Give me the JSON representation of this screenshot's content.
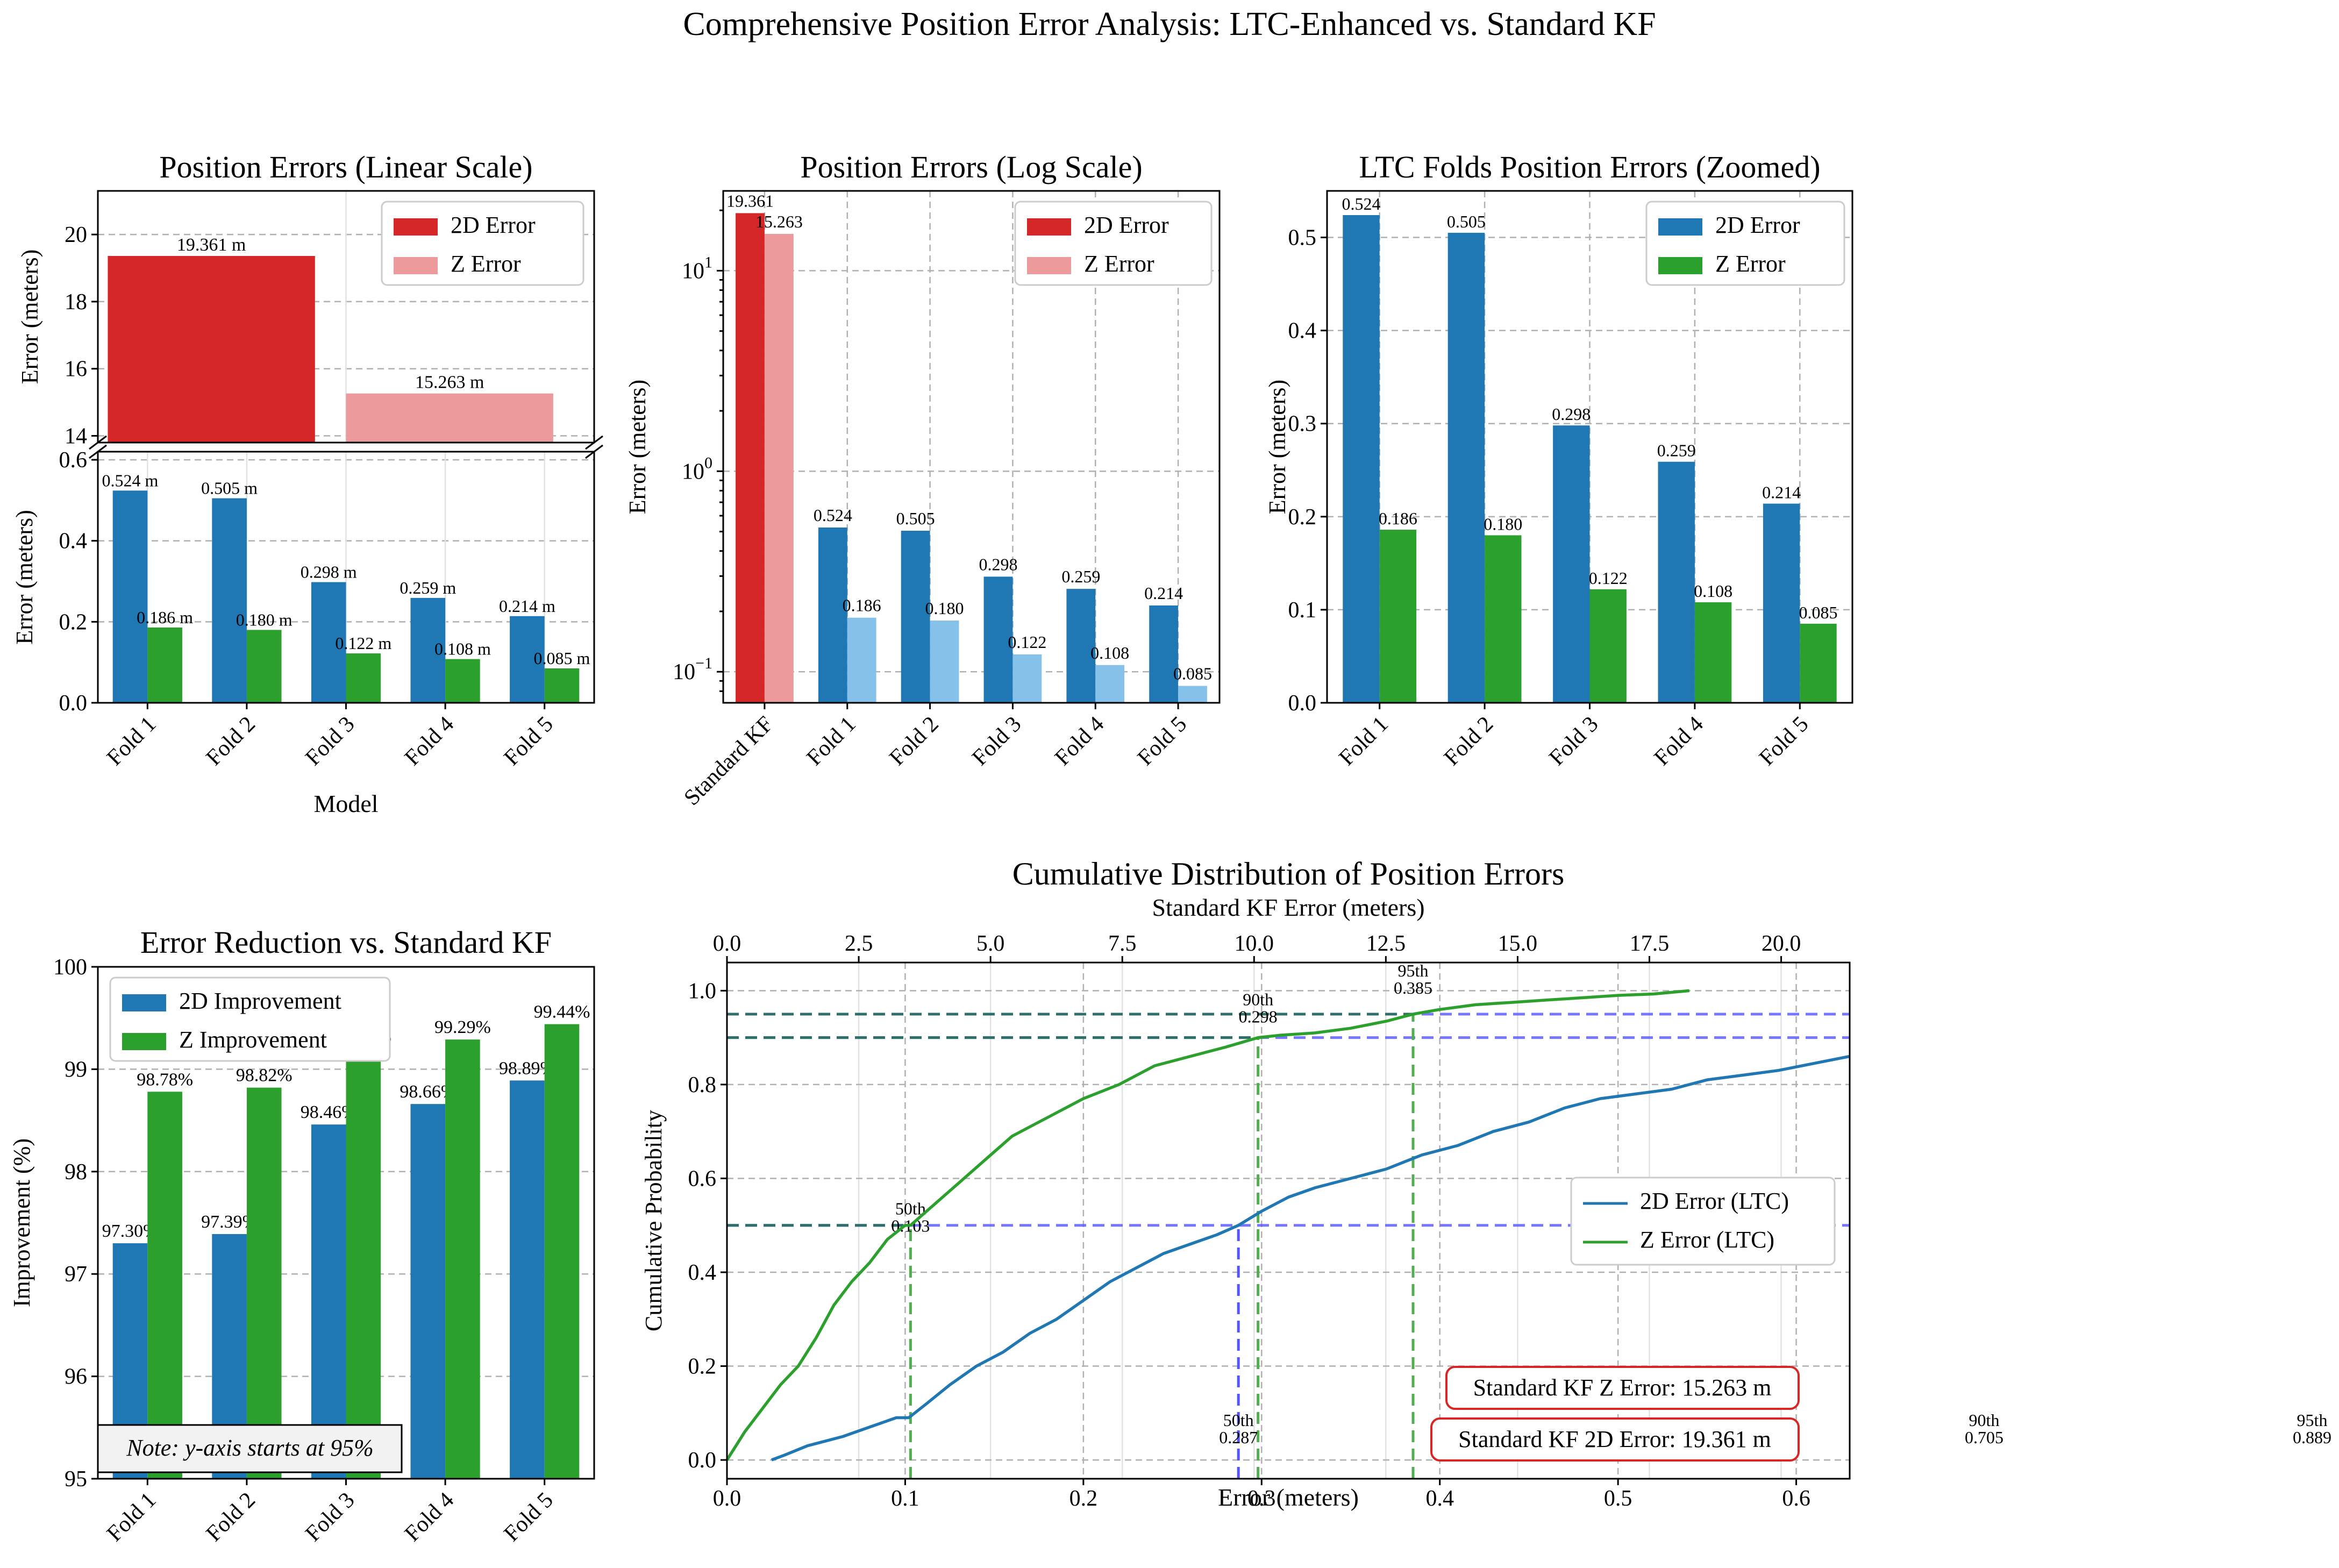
{
  "figure": {
    "suptitle": "Comprehensive Position Error Analysis: LTC-Enhanced vs. Standard KF"
  },
  "colors": {
    "kf_2d": "#d62728",
    "kf_z": "#ec9a9b",
    "ltc_2d": "#1f77b4",
    "ltc_z": "#2ca02c",
    "ltc_z_light": "#85c1e9",
    "cdf_ref_blue": "#5555ff",
    "cdf_ref_green": "#4fae4f",
    "cdf_ref_dark": "#2f6f6a",
    "annotation_red": "#d62728",
    "percentile_blue": "#0000cc",
    "percentile_green": "#1f9a1f"
  },
  "chart_data": [
    {
      "id": "linear",
      "type": "bar",
      "title": "Position Errors (Linear Scale)",
      "xlabel": "Model",
      "ylabel": "Error (meters)",
      "broken_axis": true,
      "top_panel": {
        "ylim": [
          13.8,
          21.3
        ],
        "yticks": [
          14,
          16,
          18,
          20
        ],
        "categories": [
          "Standard KF"
        ],
        "series": [
          {
            "name": "2D Error",
            "values": [
              19.361
            ],
            "labels": [
              "19.361 m"
            ]
          },
          {
            "name": "Z Error",
            "values": [
              15.263
            ],
            "labels": [
              "15.263 m"
            ]
          }
        ]
      },
      "bottom_panel": {
        "ylim": [
          0,
          0.62
        ],
        "yticks": [
          0.0,
          0.2,
          0.4,
          0.6
        ],
        "categories": [
          "Fold 1",
          "Fold 2",
          "Fold 3",
          "Fold 4",
          "Fold 5"
        ],
        "series": [
          {
            "name": "2D Error",
            "values": [
              0.524,
              0.505,
              0.298,
              0.259,
              0.214
            ],
            "labels": [
              "0.524 m",
              "0.505 m",
              "0.298 m",
              "0.259 m",
              "0.214 m"
            ]
          },
          {
            "name": "Z Error",
            "values": [
              0.186,
              0.18,
              0.122,
              0.108,
              0.085
            ],
            "labels": [
              "0.186 m",
              "0.180 m",
              "0.122 m",
              "0.108 m",
              "0.085 m"
            ]
          }
        ]
      },
      "legend": [
        "2D Error",
        "Z Error"
      ],
      "legend_position": "upper right",
      "grid": true
    },
    {
      "id": "log",
      "type": "bar",
      "title": "Position Errors (Log Scale)",
      "ylabel": "Error (meters)",
      "yscale": "log",
      "ylim": [
        0.07,
        25
      ],
      "yticks": [
        0.1,
        1,
        10
      ],
      "ytick_labels": [
        [
          "10",
          "−1"
        ],
        [
          "10",
          "0"
        ],
        [
          "10",
          "1"
        ]
      ],
      "categories": [
        "Standard KF",
        "Fold 1",
        "Fold 2",
        "Fold 3",
        "Fold 4",
        "Fold 5"
      ],
      "series": [
        {
          "name": "2D Error",
          "values": [
            19.361,
            0.524,
            0.505,
            0.298,
            0.259,
            0.214
          ],
          "labels": [
            "19.361",
            "0.524",
            "0.505",
            "0.298",
            "0.259",
            "0.214"
          ]
        },
        {
          "name": "Z Error",
          "values": [
            15.263,
            0.186,
            0.18,
            0.122,
            0.108,
            0.085
          ],
          "labels": [
            "15.263",
            "0.186",
            "0.180",
            "0.122",
            "0.108",
            "0.085"
          ]
        }
      ],
      "legend": [
        "2D Error",
        "Z Error"
      ],
      "legend_position": "upper right",
      "grid": true
    },
    {
      "id": "zoomed",
      "type": "bar",
      "title": "LTC Folds Position Errors (Zoomed)",
      "ylabel": "Error (meters)",
      "ylim": [
        0,
        0.55
      ],
      "yticks": [
        0.0,
        0.1,
        0.2,
        0.3,
        0.4,
        0.5
      ],
      "categories": [
        "Fold 1",
        "Fold 2",
        "Fold 3",
        "Fold 4",
        "Fold 5"
      ],
      "series": [
        {
          "name": "2D Error",
          "values": [
            0.524,
            0.505,
            0.298,
            0.259,
            0.214
          ],
          "labels": [
            "0.524",
            "0.505",
            "0.298",
            "0.259",
            "0.214"
          ]
        },
        {
          "name": "Z Error",
          "values": [
            0.186,
            0.18,
            0.122,
            0.108,
            0.085
          ],
          "labels": [
            "0.186",
            "0.180",
            "0.122",
            "0.108",
            "0.085"
          ]
        }
      ],
      "legend": [
        "2D Error",
        "Z Error"
      ],
      "legend_position": "upper right",
      "grid": true
    },
    {
      "id": "reduction",
      "type": "bar",
      "title": "Error Reduction vs. Standard KF",
      "ylabel": "Improvement (%)",
      "ylim": [
        95,
        100
      ],
      "yticks": [
        95,
        96,
        97,
        98,
        99,
        100
      ],
      "categories": [
        "Fold 1",
        "Fold 2",
        "Fold 3",
        "Fold 4",
        "Fold 5"
      ],
      "series": [
        {
          "name": "2D Improvement",
          "values": [
            97.3,
            97.39,
            98.46,
            98.66,
            98.89
          ],
          "labels": [
            "97.30%",
            "97.39%",
            "98.46%",
            "98.66%",
            "98.89%"
          ]
        },
        {
          "name": "Z Improvement",
          "values": [
            98.78,
            98.82,
            99.2,
            99.29,
            99.44
          ],
          "labels": [
            "98.78%",
            "98.82%",
            "99.20%",
            "99.29%",
            "99.44%"
          ]
        }
      ],
      "legend": [
        "2D Improvement",
        "Z Improvement"
      ],
      "legend_position": "upper left",
      "note": "Note: y-axis starts at 95%",
      "grid": true
    },
    {
      "id": "cdf",
      "type": "line",
      "title": "Cumulative Distribution of Position Errors",
      "xlabel": "Error (meters)",
      "ylabel": "Cumulative Probability",
      "top_xlabel": "Standard KF Error (meters)",
      "xlim": [
        0,
        0.63
      ],
      "ylim": [
        -0.04,
        1.06
      ],
      "xticks": [
        0.0,
        0.1,
        0.2,
        0.3,
        0.4,
        0.5,
        0.6
      ],
      "yticks": [
        0.0,
        0.2,
        0.4,
        0.6,
        0.8,
        1.0
      ],
      "top_xlim": [
        0,
        21.3
      ],
      "top_xticks": [
        0.0,
        2.5,
        5.0,
        7.5,
        10.0,
        12.5,
        15.0,
        17.5,
        20.0
      ],
      "series": [
        {
          "name": "2D Error (LTC)",
          "x": [
            0.025,
            0.032,
            0.045,
            0.055,
            0.065,
            0.08,
            0.095,
            0.102,
            0.112,
            0.125,
            0.14,
            0.155,
            0.17,
            0.185,
            0.2,
            0.215,
            0.23,
            0.245,
            0.26,
            0.275,
            0.287,
            0.3,
            0.315,
            0.33,
            0.35,
            0.37,
            0.39,
            0.41,
            0.43,
            0.45,
            0.47,
            0.49,
            0.51,
            0.53,
            0.55,
            0.57,
            0.59,
            0.61,
            0.63
          ],
          "y": [
            0.0,
            0.01,
            0.03,
            0.04,
            0.05,
            0.07,
            0.09,
            0.09,
            0.12,
            0.16,
            0.2,
            0.23,
            0.27,
            0.3,
            0.34,
            0.38,
            0.41,
            0.44,
            0.46,
            0.48,
            0.5,
            0.53,
            0.56,
            0.58,
            0.6,
            0.62,
            0.65,
            0.67,
            0.7,
            0.72,
            0.75,
            0.77,
            0.78,
            0.79,
            0.81,
            0.82,
            0.83,
            0.845,
            0.86
          ]
        },
        {
          "name": "Z Error (LTC)",
          "x": [
            0.0,
            0.005,
            0.01,
            0.02,
            0.03,
            0.04,
            0.05,
            0.06,
            0.07,
            0.08,
            0.09,
            0.1,
            0.103,
            0.115,
            0.13,
            0.145,
            0.16,
            0.18,
            0.2,
            0.22,
            0.24,
            0.26,
            0.28,
            0.298,
            0.31,
            0.33,
            0.35,
            0.37,
            0.385,
            0.4,
            0.42,
            0.44,
            0.46,
            0.48,
            0.5,
            0.52,
            0.54
          ],
          "y": [
            0.0,
            0.03,
            0.06,
            0.11,
            0.16,
            0.2,
            0.26,
            0.33,
            0.38,
            0.42,
            0.47,
            0.5,
            0.5,
            0.54,
            0.59,
            0.64,
            0.69,
            0.73,
            0.77,
            0.8,
            0.84,
            0.86,
            0.88,
            0.9,
            0.905,
            0.91,
            0.92,
            0.935,
            0.95,
            0.96,
            0.97,
            0.975,
            0.98,
            0.985,
            0.99,
            0.993,
            1.0
          ]
        }
      ],
      "percentile_lines": {
        "z": [
          {
            "label": "50th",
            "value": "0.103",
            "x": 0.103,
            "p": 0.5
          },
          {
            "label": "90th",
            "value": "0.298",
            "x": 0.298,
            "p": 0.9
          },
          {
            "label": "95th",
            "value": "0.385",
            "x": 0.385,
            "p": 0.95
          }
        ],
        "d2": [
          {
            "label": "50th",
            "value": "0.287",
            "x": 0.287,
            "p": 0.5
          },
          {
            "label": "90th",
            "value": "0.705",
            "x": 0.705,
            "p": 0.9
          },
          {
            "label": "95th",
            "value": "0.889",
            "x": 0.889,
            "p": 0.95
          }
        ]
      },
      "annotations": [
        "Standard KF Z Error: 15.263 m",
        "Standard KF 2D Error: 19.361 m"
      ],
      "legend": [
        "2D Error (LTC)",
        "Z Error (LTC)"
      ],
      "legend_position": "center right",
      "grid": true
    }
  ]
}
